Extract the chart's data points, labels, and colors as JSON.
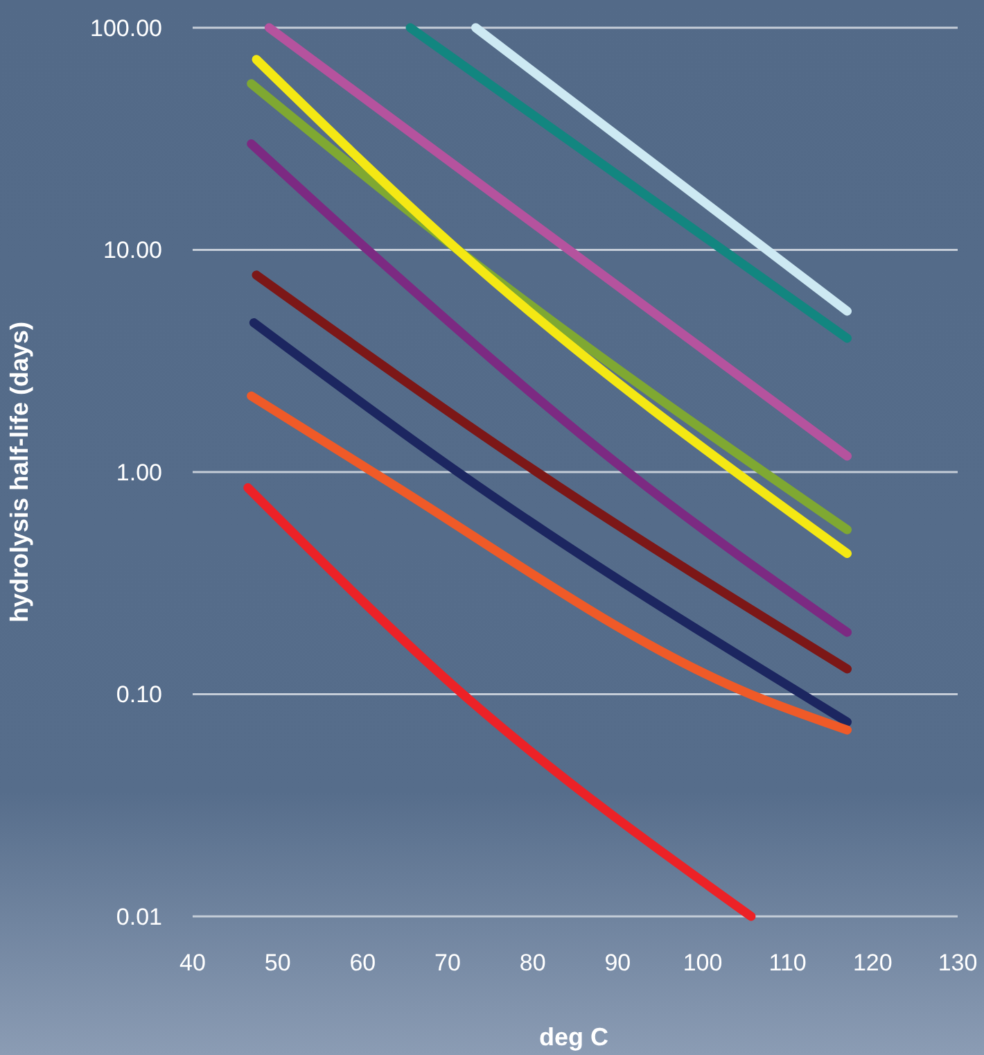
{
  "chart_data": {
    "type": "line",
    "xlabel": "deg C",
    "ylabel": "hydrolysis half-life (days)",
    "log": "y",
    "grid": "y",
    "xlim": [
      40,
      130
    ],
    "xticks": [
      40,
      50,
      60,
      70,
      80,
      90,
      100,
      110,
      120,
      130
    ],
    "ylim": [
      0.01,
      100
    ],
    "yticks": [
      {
        "value": 0.01,
        "label": "0.01"
      },
      {
        "value": 0.1,
        "label": "0.10"
      },
      {
        "value": 1,
        "label": "1.00"
      },
      {
        "value": 10,
        "label": "10.00"
      },
      {
        "value": 100,
        "label": "100.00"
      }
    ],
    "series": [
      {
        "color": "#cde9f3",
        "x": [
          73.3,
          117
        ],
        "values": [
          100,
          5.3
        ]
      },
      {
        "color": "#128680",
        "x": [
          65.6,
          117
        ],
        "values": [
          100,
          4.0
        ]
      },
      {
        "color": "#b5539e",
        "x": [
          49,
          117
        ],
        "values": [
          100,
          1.18
        ]
      },
      {
        "color": "#7fa832",
        "x": [
          46.9,
          71.2,
          117
        ],
        "values": [
          56,
          10,
          0.55
        ]
      },
      {
        "color": "#f4e814",
        "x": [
          47.5,
          71.2,
          117
        ],
        "values": [
          72,
          10,
          0.43
        ]
      },
      {
        "color": "#7c2a82",
        "x": [
          46.9,
          60.6,
          91.2,
          117
        ],
        "values": [
          30,
          10,
          1,
          0.19
        ]
      },
      {
        "color": "#7c1717",
        "x": [
          47.5,
          80.5,
          117
        ],
        "values": [
          7.7,
          1,
          0.13
        ]
      },
      {
        "color": "#1c2660",
        "x": [
          47.2,
          71.2,
          117
        ],
        "values": [
          4.7,
          1,
          0.075
        ]
      },
      {
        "color": "#ef5a28",
        "x": [
          46.9,
          61.2,
          105.6,
          117
        ],
        "values": [
          2.2,
          1,
          0.1,
          0.069
        ]
      },
      {
        "color": "#ec2227",
        "x": [
          46.5,
          71.8,
          105.7
        ],
        "values": [
          0.85,
          0.1,
          0.01
        ]
      }
    ]
  }
}
